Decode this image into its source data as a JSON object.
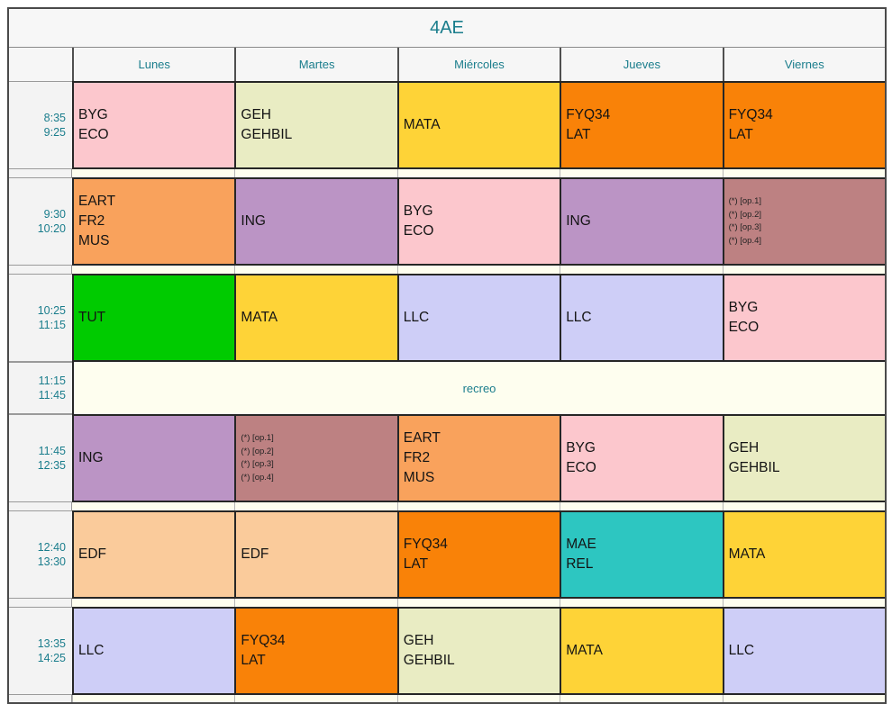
{
  "title": "4AE",
  "days": [
    "Lunes",
    "Martes",
    "Miércoles",
    "Jueves",
    "Viernes"
  ],
  "accent_color": "#1a7d8c",
  "palette": {
    "pink": "#fcc7cd",
    "olive": "#e9ecc3",
    "yellow": "#fed337",
    "orange": "#f98208",
    "sandy": "#f9a25c",
    "mauve": "#bb94c5",
    "rosybrown": "#bd8182",
    "green": "#00cb00",
    "lavender": "#cecef7",
    "peach": "#facb9b",
    "teal": "#2dc6c1",
    "break_bg": "#fefeef",
    "time_col_bg": "#f3f3f3"
  },
  "schedule": [
    {
      "time": "8:35\n9:25",
      "cells": [
        {
          "text": "BYG\nECO",
          "bg": "pink"
        },
        {
          "text": "GEH\nGEHBIL",
          "bg": "olive"
        },
        {
          "text": "MATA",
          "bg": "yellow"
        },
        {
          "text": "FYQ34\nLAT",
          "bg": "orange"
        },
        {
          "text": "FYQ34\nLAT",
          "bg": "orange"
        }
      ]
    },
    {
      "time": "9:30\n10:20",
      "cells": [
        {
          "text": "EART\nFR2\nMUS",
          "bg": "sandy"
        },
        {
          "text": "ING",
          "bg": "mauve"
        },
        {
          "text": "BYG\nECO",
          "bg": "pink"
        },
        {
          "text": "ING",
          "bg": "mauve"
        },
        {
          "text": "(*) [op.1]\n(*) [op.2]\n(*) [op.3]\n(*) [op.4]",
          "bg": "rosybrown",
          "small": true
        }
      ]
    },
    {
      "time": "10:25\n11:15",
      "cells": [
        {
          "text": "TUT",
          "bg": "green"
        },
        {
          "text": "MATA",
          "bg": "yellow"
        },
        {
          "text": "LLC",
          "bg": "lavender"
        },
        {
          "text": "LLC",
          "bg": "lavender"
        },
        {
          "text": "BYG\nECO",
          "bg": "pink"
        }
      ]
    },
    {
      "time": "11:15\n11:45",
      "break_label": "recreo"
    },
    {
      "time": "11:45\n12:35",
      "cells": [
        {
          "text": "ING",
          "bg": "mauve"
        },
        {
          "text": "(*) [op.1]\n(*) [op.2]\n(*) [op.3]\n(*) [op.4]",
          "bg": "rosybrown",
          "small": true
        },
        {
          "text": "EART\nFR2\nMUS",
          "bg": "sandy"
        },
        {
          "text": "BYG\nECO",
          "bg": "pink"
        },
        {
          "text": "GEH\nGEHBIL",
          "bg": "olive"
        }
      ]
    },
    {
      "time": "12:40\n13:30",
      "cells": [
        {
          "text": "EDF",
          "bg": "peach"
        },
        {
          "text": "EDF",
          "bg": "peach"
        },
        {
          "text": "FYQ34\nLAT",
          "bg": "orange"
        },
        {
          "text": "MAE\nREL",
          "bg": "teal"
        },
        {
          "text": "MATA",
          "bg": "yellow"
        }
      ]
    },
    {
      "time": "13:35\n14:25",
      "cells": [
        {
          "text": "LLC",
          "bg": "lavender"
        },
        {
          "text": "FYQ34\nLAT",
          "bg": "orange"
        },
        {
          "text": "GEH\nGEHBIL",
          "bg": "olive"
        },
        {
          "text": "MATA",
          "bg": "yellow"
        },
        {
          "text": "LLC",
          "bg": "lavender"
        }
      ]
    }
  ]
}
